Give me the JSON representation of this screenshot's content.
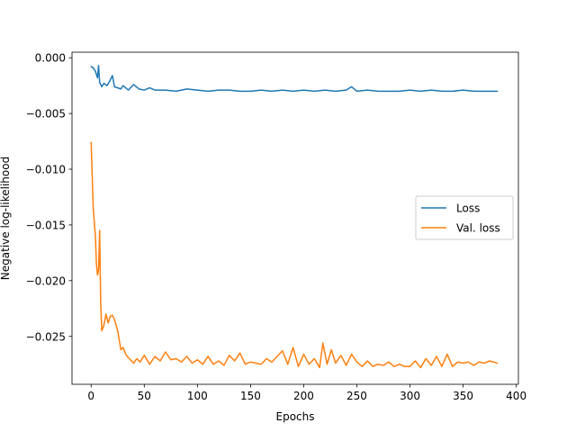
{
  "chart_data": {
    "type": "line",
    "title": "",
    "xlabel": "Epochs",
    "ylabel": "Negative log-likelihood",
    "xlim": [
      -18,
      402
    ],
    "ylim": [
      -0.0293,
      0.0005
    ],
    "xticks": [
      0,
      50,
      100,
      150,
      200,
      250,
      300,
      350,
      400
    ],
    "xtick_labels": [
      "0",
      "50",
      "100",
      "150",
      "200",
      "250",
      "300",
      "350",
      "400"
    ],
    "yticks": [
      0.0,
      -0.005,
      -0.01,
      -0.015,
      -0.02,
      -0.025
    ],
    "ytick_labels": [
      "0.000",
      "−0.005",
      "−0.010",
      "−0.015",
      "−0.020",
      "−0.025"
    ],
    "grid": false,
    "legend": {
      "position": "center-right",
      "entries": [
        "Loss",
        "Val. loss"
      ]
    },
    "series": [
      {
        "name": "Loss",
        "color": "#1f77b4",
        "x": [
          0,
          2,
          4,
          6,
          7,
          8,
          10,
          12,
          15,
          18,
          20,
          22,
          25,
          28,
          30,
          35,
          40,
          45,
          50,
          55,
          60,
          70,
          80,
          90,
          100,
          110,
          120,
          130,
          140,
          150,
          160,
          170,
          180,
          190,
          200,
          210,
          220,
          230,
          240,
          245,
          250,
          260,
          270,
          280,
          290,
          300,
          310,
          320,
          330,
          340,
          350,
          360,
          370,
          382
        ],
        "y": [
          -0.0008,
          -0.0009,
          -0.0012,
          -0.0018,
          -0.0007,
          -0.0022,
          -0.0026,
          -0.0023,
          -0.0025,
          -0.002,
          -0.0016,
          -0.0026,
          -0.0027,
          -0.0028,
          -0.0025,
          -0.0029,
          -0.0024,
          -0.0028,
          -0.0029,
          -0.0027,
          -0.0029,
          -0.0029,
          -0.003,
          -0.0028,
          -0.0029,
          -0.003,
          -0.0029,
          -0.0029,
          -0.003,
          -0.003,
          -0.0029,
          -0.003,
          -0.0029,
          -0.003,
          -0.0029,
          -0.003,
          -0.0029,
          -0.003,
          -0.0029,
          -0.0026,
          -0.003,
          -0.0029,
          -0.003,
          -0.003,
          -0.003,
          -0.0029,
          -0.003,
          -0.0029,
          -0.003,
          -0.003,
          -0.0029,
          -0.003,
          -0.003,
          -0.003
        ]
      },
      {
        "name": "Val. loss",
        "color": "#ff7f0e",
        "x": [
          0,
          2,
          4,
          5,
          6,
          7,
          8,
          9,
          10,
          12,
          14,
          16,
          18,
          20,
          22,
          25,
          28,
          30,
          33,
          36,
          40,
          43,
          46,
          50,
          55,
          60,
          65,
          70,
          75,
          80,
          85,
          90,
          95,
          100,
          105,
          110,
          115,
          120,
          125,
          130,
          135,
          140,
          145,
          150,
          155,
          160,
          165,
          170,
          175,
          180,
          185,
          190,
          195,
          200,
          205,
          210,
          215,
          218,
          222,
          226,
          230,
          235,
          240,
          245,
          250,
          255,
          260,
          265,
          270,
          275,
          280,
          285,
          290,
          295,
          300,
          305,
          310,
          315,
          320,
          325,
          330,
          335,
          340,
          345,
          350,
          355,
          360,
          365,
          370,
          375,
          382
        ],
        "y": [
          -0.0076,
          -0.0135,
          -0.016,
          -0.0185,
          -0.0195,
          -0.019,
          -0.0155,
          -0.022,
          -0.0245,
          -0.024,
          -0.023,
          -0.0238,
          -0.0232,
          -0.0231,
          -0.0235,
          -0.0245,
          -0.0262,
          -0.026,
          -0.0267,
          -0.027,
          -0.0274,
          -0.027,
          -0.0273,
          -0.0267,
          -0.0275,
          -0.0268,
          -0.0272,
          -0.0264,
          -0.0271,
          -0.027,
          -0.0273,
          -0.0268,
          -0.0274,
          -0.0271,
          -0.0275,
          -0.0268,
          -0.0275,
          -0.0272,
          -0.0276,
          -0.0267,
          -0.0272,
          -0.0265,
          -0.0275,
          -0.0273,
          -0.0274,
          -0.0275,
          -0.027,
          -0.0273,
          -0.0268,
          -0.0263,
          -0.0275,
          -0.026,
          -0.0277,
          -0.0266,
          -0.0275,
          -0.027,
          -0.0278,
          -0.0256,
          -0.0275,
          -0.0262,
          -0.0274,
          -0.0267,
          -0.0276,
          -0.0266,
          -0.0273,
          -0.0277,
          -0.0272,
          -0.0277,
          -0.0275,
          -0.0276,
          -0.0273,
          -0.0277,
          -0.0275,
          -0.0277,
          -0.0277,
          -0.0272,
          -0.0278,
          -0.027,
          -0.0276,
          -0.0268,
          -0.0277,
          -0.0266,
          -0.0277,
          -0.0273,
          -0.0274,
          -0.0273,
          -0.0276,
          -0.0273,
          -0.0274,
          -0.0272,
          -0.0274
        ]
      }
    ]
  }
}
